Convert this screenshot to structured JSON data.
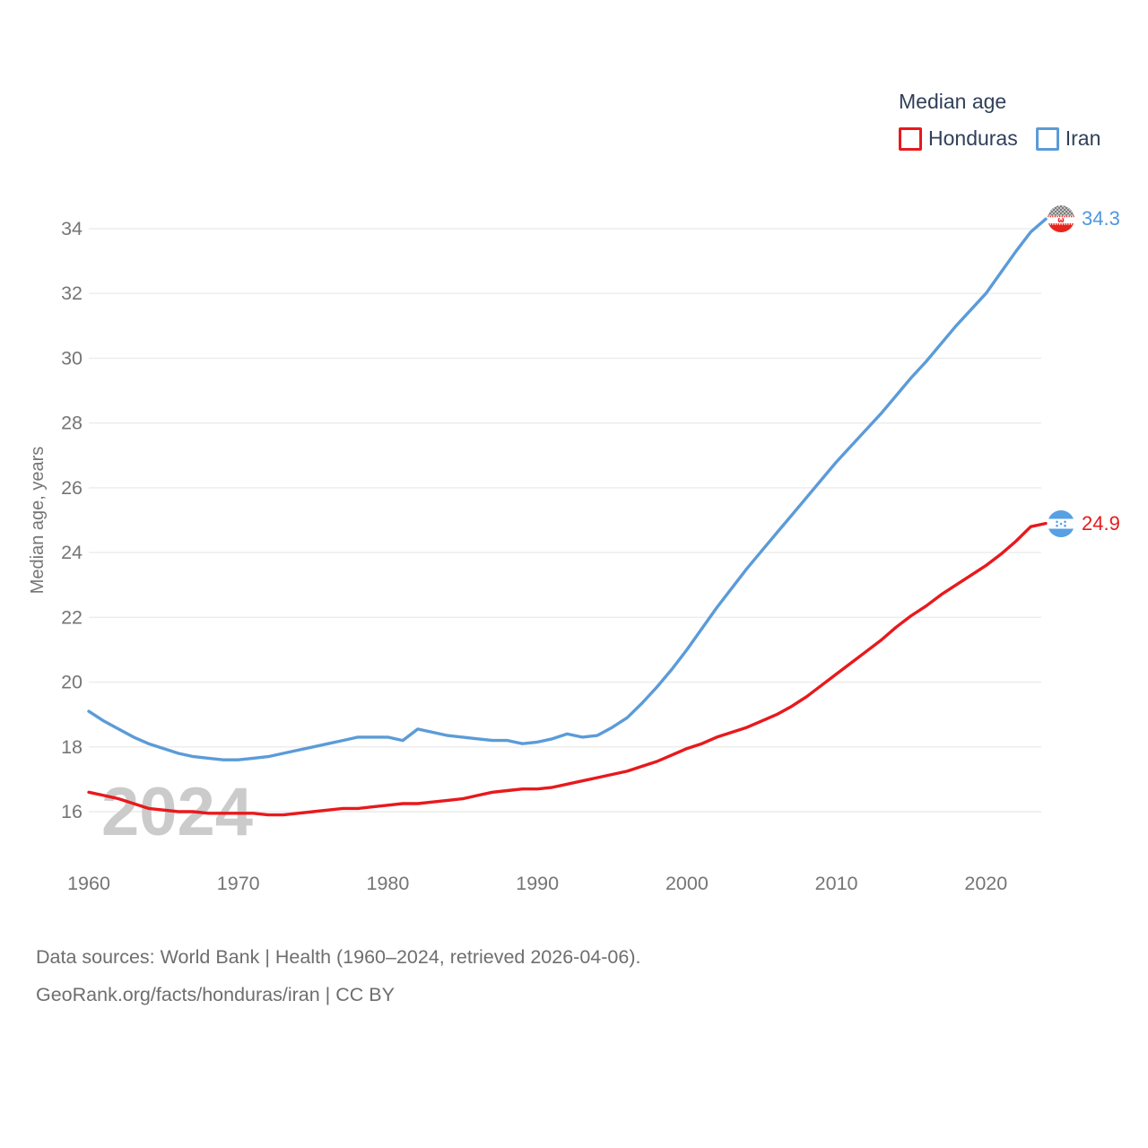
{
  "legend": {
    "title": "Median age",
    "items": [
      {
        "label": "Honduras",
        "color": "#e8191c"
      },
      {
        "label": "Iran",
        "color": "#5b9bd8"
      }
    ]
  },
  "watermark": "2024",
  "end_labels": [
    {
      "series": "Iran",
      "value": "34.3",
      "color": "#4f97e0"
    },
    {
      "series": "Honduras",
      "value": "24.9",
      "color": "#e8191c"
    }
  ],
  "axis": {
    "y_title": "Median age, years"
  },
  "footer": {
    "line1": "Data sources: World Bank | Health (1960–2024, retrieved 2026-04-06).",
    "line2": "GeoRank.org/facts/honduras/iran | CC BY"
  },
  "chart_data": {
    "type": "line",
    "title": "Median age",
    "xlabel": "",
    "ylabel": "Median age, years",
    "grid": true,
    "legend_position": "top-right",
    "x_ticks": [
      1960,
      1970,
      1980,
      1990,
      2000,
      2010,
      2020
    ],
    "y_ticks": [
      16,
      18,
      20,
      22,
      24,
      26,
      28,
      30,
      32,
      34
    ],
    "xlim": [
      1960,
      2024
    ],
    "ylim": [
      15.4,
      35.2
    ],
    "x": [
      1960,
      1961,
      1962,
      1963,
      1964,
      1965,
      1966,
      1967,
      1968,
      1969,
      1970,
      1971,
      1972,
      1973,
      1974,
      1975,
      1976,
      1977,
      1978,
      1979,
      1980,
      1981,
      1982,
      1983,
      1984,
      1985,
      1986,
      1987,
      1988,
      1989,
      1990,
      1991,
      1992,
      1993,
      1994,
      1995,
      1996,
      1997,
      1998,
      1999,
      2000,
      2001,
      2002,
      2003,
      2004,
      2005,
      2006,
      2007,
      2008,
      2009,
      2010,
      2011,
      2012,
      2013,
      2014,
      2015,
      2016,
      2017,
      2018,
      2019,
      2020,
      2021,
      2022,
      2023,
      2024
    ],
    "series": [
      {
        "name": "Honduras",
        "color": "#e8191c",
        "end_label": "24.9",
        "values": [
          16.6,
          16.5,
          16.4,
          16.25,
          16.1,
          16.05,
          16.0,
          16.0,
          15.95,
          15.95,
          15.95,
          15.95,
          15.9,
          15.9,
          15.95,
          16.0,
          16.05,
          16.1,
          16.1,
          16.15,
          16.2,
          16.25,
          16.25,
          16.3,
          16.35,
          16.4,
          16.5,
          16.6,
          16.65,
          16.7,
          16.7,
          16.75,
          16.85,
          16.95,
          17.05,
          17.15,
          17.25,
          17.4,
          17.55,
          17.75,
          17.95,
          18.1,
          18.3,
          18.45,
          18.6,
          18.8,
          19.0,
          19.25,
          19.55,
          19.9,
          20.25,
          20.6,
          20.95,
          21.3,
          21.7,
          22.05,
          22.35,
          22.7,
          23.0,
          23.3,
          23.6,
          23.95,
          24.35,
          24.8,
          24.9
        ]
      },
      {
        "name": "Iran",
        "color": "#5b9bd8",
        "end_label": "34.3",
        "values": [
          19.1,
          18.8,
          18.55,
          18.3,
          18.1,
          17.95,
          17.8,
          17.7,
          17.65,
          17.6,
          17.6,
          17.65,
          17.7,
          17.8,
          17.9,
          18.0,
          18.1,
          18.2,
          18.3,
          18.3,
          18.3,
          18.2,
          18.55,
          18.45,
          18.35,
          18.3,
          18.25,
          18.2,
          18.2,
          18.1,
          18.15,
          18.25,
          18.4,
          18.3,
          18.35,
          18.6,
          18.9,
          19.35,
          19.85,
          20.4,
          21.0,
          21.65,
          22.3,
          22.9,
          23.5,
          24.05,
          24.6,
          25.15,
          25.7,
          26.25,
          26.8,
          27.3,
          27.8,
          28.3,
          28.85,
          29.4,
          29.9,
          30.45,
          31.0,
          31.5,
          32.0,
          32.65,
          33.3,
          33.9,
          34.3
        ]
      }
    ]
  }
}
